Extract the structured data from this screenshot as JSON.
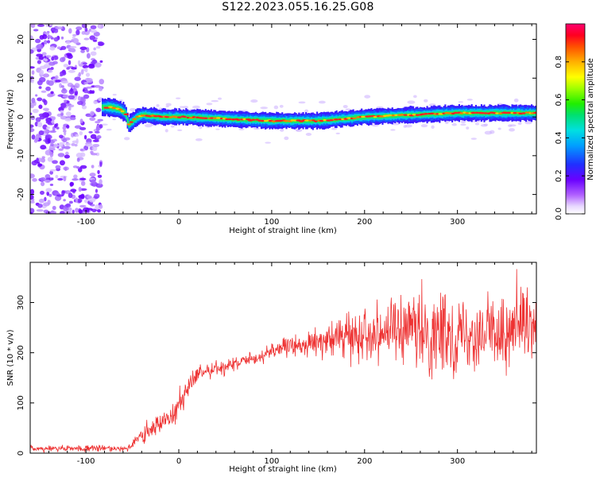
{
  "title": "S122.2023.055.16.25.G08",
  "colors": {
    "snr_line": "#ee3333",
    "spectrogram_background": "#ffffff"
  },
  "chart_data": [
    {
      "type": "heatmap",
      "xlabel": "Height of straight line (km)",
      "ylabel": "Frequency (Hz)",
      "xlim": [
        -160,
        385
      ],
      "ylim": [
        -25,
        24
      ],
      "xticks": [
        -100,
        0,
        100,
        200,
        300
      ],
      "yticks": [
        -20,
        -10,
        0,
        10,
        20
      ],
      "colorbar": {
        "label": "Normalized spectral amplitude",
        "range": [
          0,
          1
        ],
        "ticks": [
          0.0,
          0.2,
          0.4,
          0.6,
          0.8
        ],
        "colormap": "rainbow (white at 0 → purple → blue → cyan → green → yellow → red)"
      },
      "description_of_structure": "Noisy broadband purple patches from -160 to -83 km; a narrow signal ridge near 0 Hz from -83 km onward (positive offset ~2-3 Hz near -80 to -60 km, dip to about -2 Hz near -55 km, then near 0 Hz to -1 Hz around 100-200 km, rising to about +1 Hz beyond 250 km), high amplitude (red) at the ridge center.",
      "ridge": {
        "x": [
          -83,
          -75,
          -65,
          -58,
          -55,
          -50,
          -45,
          -40,
          -20,
          0,
          50,
          100,
          150,
          200,
          250,
          300,
          385
        ],
        "y": [
          2.5,
          2.5,
          2.0,
          1.0,
          -2.0,
          -1.0,
          0.0,
          0.5,
          0.0,
          0.0,
          -0.5,
          -1.0,
          -1.0,
          0.0,
          0.5,
          1.0,
          1.0
        ]
      }
    },
    {
      "type": "line",
      "xlabel": "Height of straight line (km)",
      "ylabel": "SNR (10 * v/v)",
      "xlim": [
        -160,
        385
      ],
      "ylim": [
        0,
        380
      ],
      "xticks": [
        -100,
        0,
        100,
        200,
        300
      ],
      "yticks": [
        0,
        100,
        200,
        300
      ],
      "series": [
        {
          "color": "#ee3333",
          "envelope": {
            "x": [
              -160,
              -100,
              -55,
              -45,
              -30,
              -10,
              0,
              10,
              20,
              30,
              50,
              80,
              100,
              130,
              160,
              200,
              230,
              270,
              300,
              340,
              385
            ],
            "mean": [
              9,
              9,
              10,
              25,
              45,
              75,
              95,
              130,
              155,
              165,
              172,
              185,
              205,
              215,
              225,
              240,
              245,
              235,
              240,
              240,
              245
            ],
            "spread": [
              5,
              5,
              6,
              14,
              18,
              20,
              25,
              20,
              15,
              12,
              12,
              12,
              12,
              18,
              25,
              40,
              55,
              65,
              65,
              60,
              55
            ]
          }
        }
      ]
    }
  ]
}
